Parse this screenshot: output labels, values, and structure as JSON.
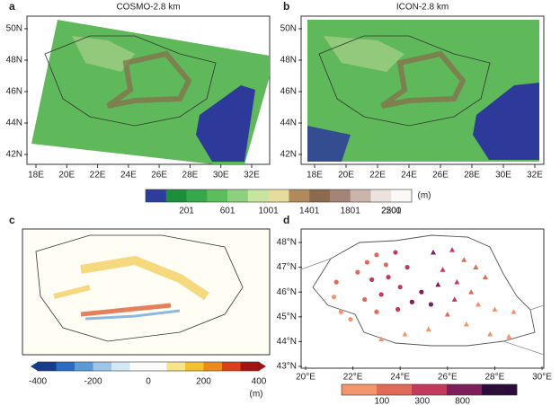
{
  "panels": [
    {
      "label": "a",
      "title": "COSMO-2.8 km",
      "lat_ticks": [
        {
          "value": 42,
          "label": "42N"
        },
        {
          "value": 44,
          "label": "44N"
        },
        {
          "value": 46,
          "label": "46N"
        },
        {
          "value": 48,
          "label": "48N"
        },
        {
          "value": 50,
          "label": "50N"
        }
      ],
      "lon_ticks": [
        {
          "value": 18,
          "label": "18E"
        },
        {
          "value": 20,
          "label": "20E"
        },
        {
          "value": 22,
          "label": "22E"
        },
        {
          "value": 24,
          "label": "24E"
        },
        {
          "value": 26,
          "label": "26E"
        },
        {
          "value": 28,
          "label": "28E"
        },
        {
          "value": 30,
          "label": "30E"
        },
        {
          "value": 32,
          "label": "32E"
        }
      ]
    },
    {
      "label": "b",
      "title": "ICON-2.8 km",
      "lat_ticks": [
        {
          "value": 42,
          "label": "42N"
        },
        {
          "value": 44,
          "label": "44N"
        },
        {
          "value": 46,
          "label": "46N"
        },
        {
          "value": 48,
          "label": "48N"
        },
        {
          "value": 50,
          "label": "50N"
        }
      ],
      "lon_ticks": [
        {
          "value": 18,
          "label": "18E"
        },
        {
          "value": 20,
          "label": "20E"
        },
        {
          "value": 22,
          "label": "22E"
        },
        {
          "value": 24,
          "label": "24E"
        },
        {
          "value": 26,
          "label": "26E"
        },
        {
          "value": 28,
          "label": "28E"
        },
        {
          "value": 30,
          "label": "30E"
        },
        {
          "value": 32,
          "label": "32E"
        }
      ]
    },
    {
      "label": "c"
    },
    {
      "label": "d",
      "lat_ticks": [
        {
          "value": 43,
          "label": "43°N"
        },
        {
          "value": 44,
          "label": "44°N"
        },
        {
          "value": 45,
          "label": "45°N"
        },
        {
          "value": 46,
          "label": "46°N"
        },
        {
          "value": 47,
          "label": "47°N"
        },
        {
          "value": 48,
          "label": "48°N"
        }
      ],
      "lon_ticks": [
        {
          "value": 20,
          "label": "20°E"
        },
        {
          "value": 22,
          "label": "22°E"
        },
        {
          "value": 24,
          "label": "24°E"
        },
        {
          "value": 26,
          "label": "26°E"
        },
        {
          "value": 28,
          "label": "28°E"
        },
        {
          "value": 30,
          "label": "30°E"
        }
      ],
      "stations": [
        {
          "lon": 21.2,
          "lat": 45.8,
          "elev": 90,
          "marker": "circle"
        },
        {
          "lon": 21.5,
          "lat": 45.2,
          "elev": 90,
          "marker": "circle"
        },
        {
          "lon": 21.9,
          "lat": 44.9,
          "elev": 80,
          "marker": "circle"
        },
        {
          "lon": 21.3,
          "lat": 46.4,
          "elev": 110,
          "marker": "circle"
        },
        {
          "lon": 22.2,
          "lat": 46.8,
          "elev": 150,
          "marker": "circle"
        },
        {
          "lon": 22.6,
          "lat": 47.2,
          "elev": 200,
          "marker": "circle"
        },
        {
          "lon": 23.0,
          "lat": 47.5,
          "elev": 250,
          "marker": "circle"
        },
        {
          "lon": 23.4,
          "lat": 47.1,
          "elev": 260,
          "marker": "circle"
        },
        {
          "lon": 23.8,
          "lat": 47.6,
          "elev": 350,
          "marker": "circle"
        },
        {
          "lon": 22.8,
          "lat": 46.5,
          "elev": 400,
          "marker": "circle"
        },
        {
          "lon": 23.5,
          "lat": 46.6,
          "elev": 500,
          "marker": "circle"
        },
        {
          "lon": 22.5,
          "lat": 45.7,
          "elev": 250,
          "marker": "circle"
        },
        {
          "lon": 23.2,
          "lat": 45.9,
          "elev": 350,
          "marker": "circle"
        },
        {
          "lon": 24.0,
          "lat": 46.2,
          "elev": 700,
          "marker": "circle"
        },
        {
          "lon": 24.5,
          "lat": 45.6,
          "elev": 900,
          "marker": "circle"
        },
        {
          "lon": 24.9,
          "lat": 46.0,
          "elev": 850,
          "marker": "circle"
        },
        {
          "lon": 25.3,
          "lat": 45.5,
          "elev": 1000,
          "marker": "circle"
        },
        {
          "lon": 24.3,
          "lat": 47.0,
          "elev": 450,
          "marker": "circle"
        },
        {
          "lon": 23.0,
          "lat": 45.2,
          "elev": 200,
          "marker": "circle"
        },
        {
          "lon": 23.9,
          "lat": 45.3,
          "elev": 300,
          "marker": "circle"
        },
        {
          "lon": 25.4,
          "lat": 47.6,
          "elev": 850,
          "marker": "triangle"
        },
        {
          "lon": 25.8,
          "lat": 46.9,
          "elev": 700,
          "marker": "triangle"
        },
        {
          "lon": 25.6,
          "lat": 46.3,
          "elev": 900,
          "marker": "triangle"
        },
        {
          "lon": 26.2,
          "lat": 47.7,
          "elev": 300,
          "marker": "triangle"
        },
        {
          "lon": 26.7,
          "lat": 47.3,
          "elev": 250,
          "marker": "triangle"
        },
        {
          "lon": 27.2,
          "lat": 47.0,
          "elev": 200,
          "marker": "triangle"
        },
        {
          "lon": 27.6,
          "lat": 46.6,
          "elev": 180,
          "marker": "triangle"
        },
        {
          "lon": 26.4,
          "lat": 46.4,
          "elev": 350,
          "marker": "triangle"
        },
        {
          "lon": 27.0,
          "lat": 46.0,
          "elev": 200,
          "marker": "triangle"
        },
        {
          "lon": 26.3,
          "lat": 45.7,
          "elev": 400,
          "marker": "triangle"
        },
        {
          "lon": 27.3,
          "lat": 45.5,
          "elev": 90,
          "marker": "triangle"
        },
        {
          "lon": 28.0,
          "lat": 45.3,
          "elev": 50,
          "marker": "triangle"
        },
        {
          "lon": 26.0,
          "lat": 45.1,
          "elev": 120,
          "marker": "triangle"
        },
        {
          "lon": 26.8,
          "lat": 44.7,
          "elev": 70,
          "marker": "triangle"
        },
        {
          "lon": 25.2,
          "lat": 44.5,
          "elev": 80,
          "marker": "triangle"
        },
        {
          "lon": 24.2,
          "lat": 44.3,
          "elev": 60,
          "marker": "triangle"
        },
        {
          "lon": 23.2,
          "lat": 44.1,
          "elev": 50,
          "marker": "triangle"
        },
        {
          "lon": 27.8,
          "lat": 44.3,
          "elev": 40,
          "marker": "triangle"
        },
        {
          "lon": 28.6,
          "lat": 44.2,
          "elev": 20,
          "marker": "triangle"
        },
        {
          "lon": 28.8,
          "lat": 45.2,
          "elev": 10,
          "marker": "triangle"
        }
      ]
    }
  ],
  "colorbars": [
    {
      "colors": [
        "#2e3d9c",
        "#1d8f3a",
        "#34a84a",
        "#5cbd5c",
        "#8dd080",
        "#c6e6a0",
        "#e8dc9c",
        "#b08a5a",
        "#8c6a4e",
        "#a58478",
        "#cbb4ac",
        "#ebe2de",
        "#fbf8f6"
      ],
      "ticks": [
        201,
        601,
        1001,
        1401,
        1801,
        2201,
        2500
      ],
      "unit": "(m)"
    },
    {
      "colors": [
        "#163d8c",
        "#2a6bbf",
        "#5c9ad6",
        "#9cc6e8",
        "#d2e8f4",
        "#fbfbfb",
        "#fbfbfb",
        "#f6e38a",
        "#f3c02e",
        "#ec8a1c",
        "#d8401a",
        "#a31414"
      ],
      "ticks": [
        -400,
        -200,
        0,
        200,
        400
      ],
      "unit": "(m)"
    },
    {
      "colors": [
        "#f2956a",
        "#e06a58",
        "#c23a5c",
        "#7e1e5a",
        "#2b0c3c"
      ],
      "ticks": [
        100,
        300,
        800
      ],
      "unit": "(m)"
    }
  ]
}
